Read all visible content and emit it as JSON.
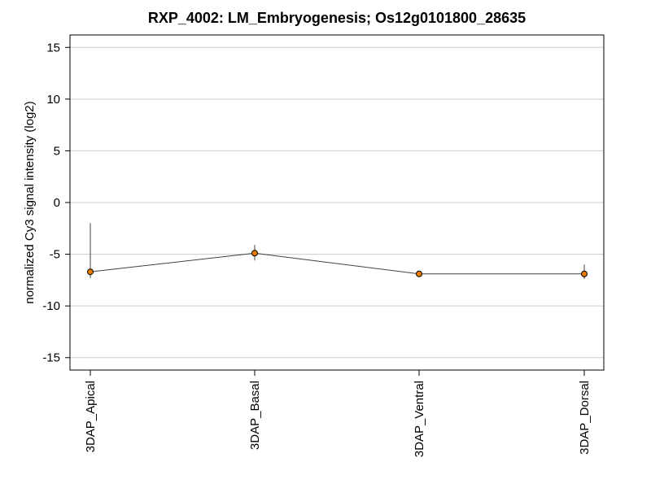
{
  "chart_data": {
    "type": "line",
    "title": "RXP_4002: LM_Embryogenesis; Os12g0101800_28635",
    "xlabel": "",
    "ylabel": "normalized Cy3 signal intensity (log2)",
    "categories": [
      "3DAP_Apical",
      "3DAP_Basal",
      "3DAP_Ventral",
      "3DAP_Dorsal"
    ],
    "series": [
      {
        "values": [
          -6.7,
          -4.9,
          -6.9,
          -6.9
        ],
        "error_low": [
          -7.3,
          -5.6,
          -7.1,
          -7.4
        ],
        "error_high": [
          -2.0,
          -4.1,
          -6.6,
          -6.0
        ]
      }
    ],
    "ylim": [
      -16.2,
      16.2
    ],
    "yticks": [
      -15,
      -10,
      -5,
      0,
      5,
      10,
      15
    ],
    "grid": true,
    "colors": {
      "line": "#404040",
      "marker_fill": "#e87a00",
      "marker_edge": "#000000",
      "grid": "#cccccc",
      "axes": "#000000",
      "error_bar": "#404040"
    }
  }
}
